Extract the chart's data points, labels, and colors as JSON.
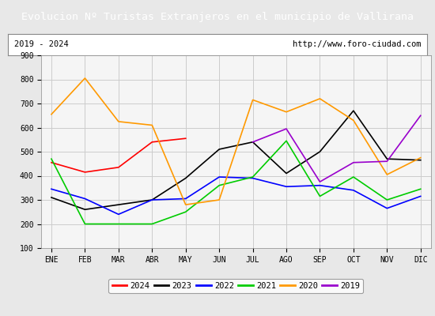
{
  "title": "Evolucion Nº Turistas Extranjeros en el municipio de Vallirana",
  "subtitle_left": "2019 - 2024",
  "subtitle_right": "http://www.foro-ciudad.com",
  "title_bg": "#4472c4",
  "title_color": "white",
  "months": [
    "ENE",
    "FEB",
    "MAR",
    "ABR",
    "MAY",
    "JUN",
    "JUL",
    "AGO",
    "SEP",
    "OCT",
    "NOV",
    "DIC"
  ],
  "ylim": [
    100,
    900
  ],
  "yticks": [
    100,
    200,
    300,
    400,
    500,
    600,
    700,
    800,
    900
  ],
  "series": {
    "2024": {
      "color": "#ff0000",
      "data": [
        455,
        415,
        435,
        540,
        555,
        null,
        null,
        null,
        null,
        null,
        null,
        null
      ]
    },
    "2023": {
      "color": "#000000",
      "data": [
        310,
        260,
        280,
        300,
        390,
        510,
        540,
        410,
        500,
        670,
        470,
        465
      ]
    },
    "2022": {
      "color": "#0000ff",
      "data": [
        345,
        305,
        240,
        300,
        305,
        395,
        390,
        355,
        360,
        340,
        265,
        315
      ]
    },
    "2021": {
      "color": "#00cc00",
      "data": [
        470,
        200,
        200,
        200,
        250,
        360,
        395,
        545,
        315,
        395,
        300,
        345
      ]
    },
    "2020": {
      "color": "#ff9900",
      "data": [
        655,
        805,
        625,
        610,
        280,
        300,
        715,
        665,
        720,
        630,
        405,
        475
      ]
    },
    "2019": {
      "color": "#9900cc",
      "data": [
        null,
        null,
        null,
        null,
        null,
        null,
        540,
        595,
        375,
        455,
        460,
        650
      ]
    }
  },
  "legend_order": [
    "2024",
    "2023",
    "2022",
    "2021",
    "2020",
    "2019"
  ],
  "bg_color": "#e8e8e8",
  "plot_bg": "#f5f5f5",
  "grid_color": "#cccccc"
}
